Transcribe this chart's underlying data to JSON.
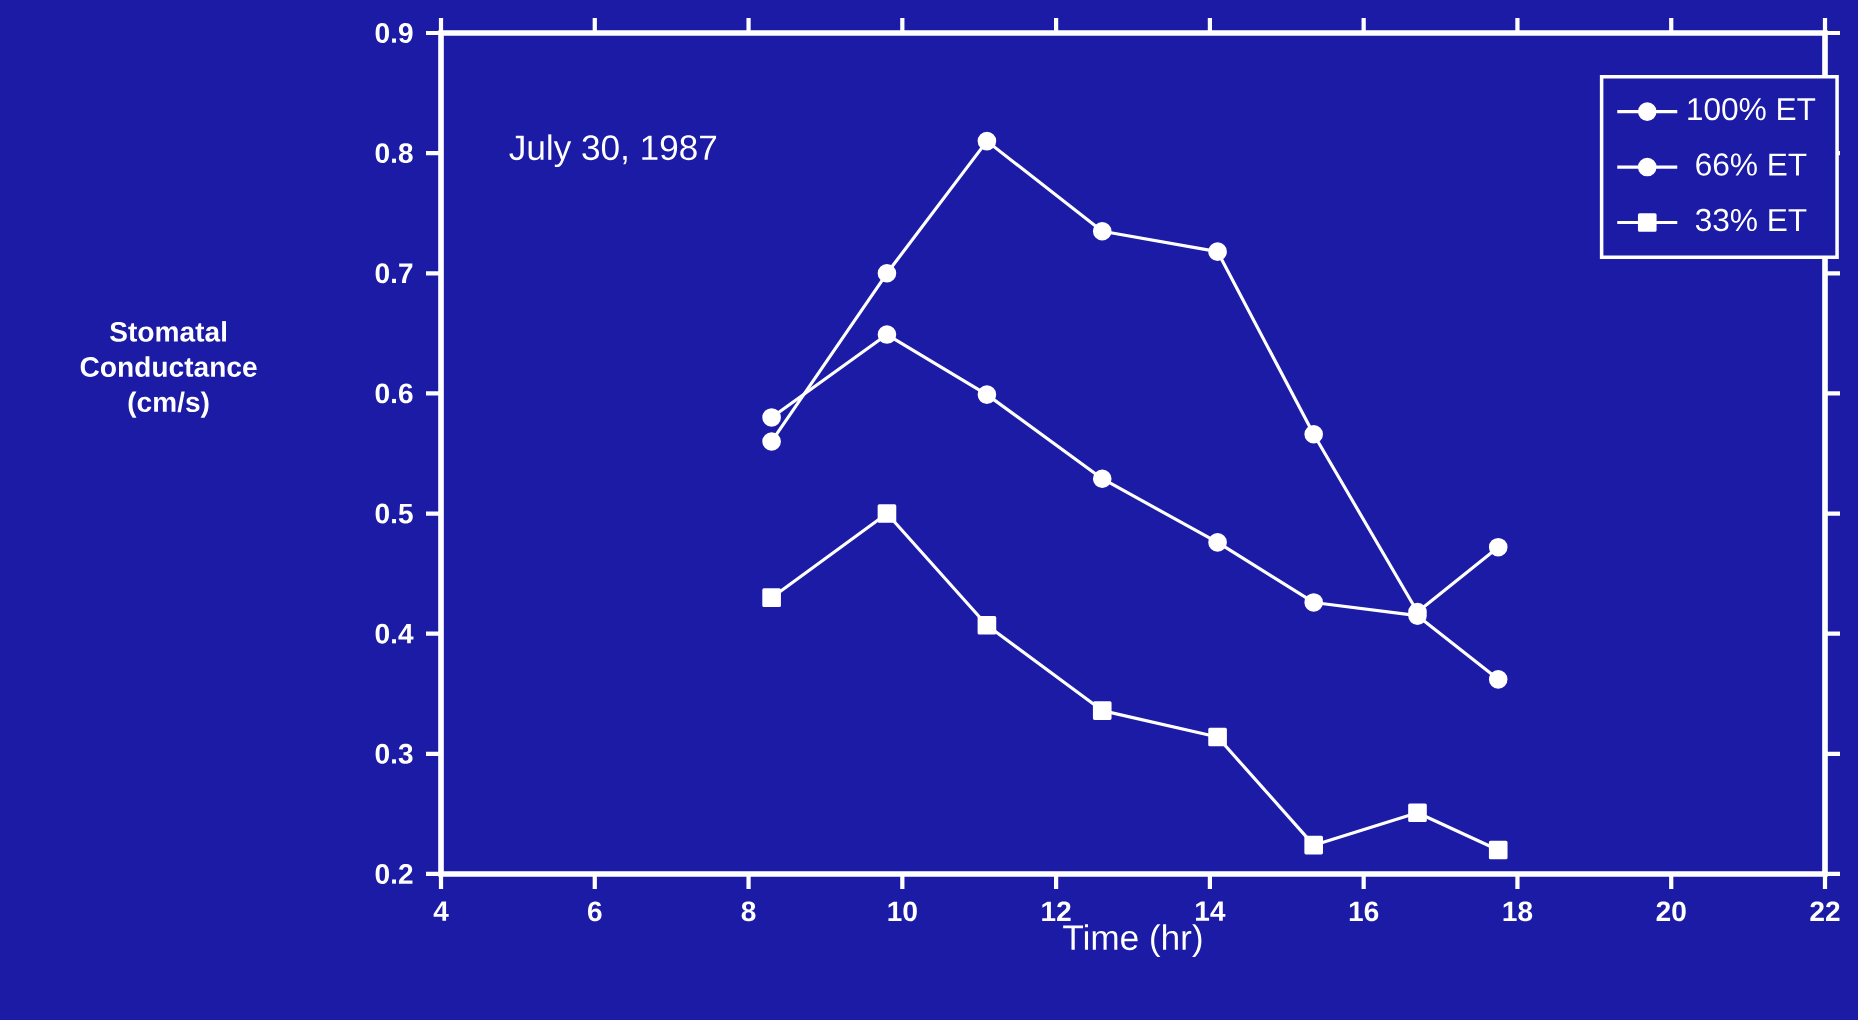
{
  "chart_data": {
    "type": "line",
    "xlabel": "Time (hr)",
    "ylabel": "Stomatal Conductance (cm/s)",
    "annotations": [
      "July 30, 1987"
    ],
    "x": [
      8.3,
      9.8,
      11.1,
      12.6,
      14.1,
      15.35,
      16.7,
      17.75
    ],
    "series": [
      {
        "name": "100% ET",
        "color": "#ffffff",
        "marker": "circle",
        "values": [
          0.56,
          0.7,
          0.81,
          0.735,
          0.718,
          0.566,
          0.418,
          0.472
        ]
      },
      {
        "name": "66% ET",
        "color": "#ffffff",
        "marker": "circle",
        "values": [
          0.58,
          0.649,
          0.599,
          0.529,
          0.476,
          0.426,
          0.415,
          0.362
        ]
      },
      {
        "name": "33% ET",
        "color": "#ffffff",
        "marker": "square",
        "values": [
          0.43,
          0.5,
          0.407,
          0.336,
          0.314,
          0.224,
          0.251,
          0.22
        ]
      }
    ],
    "xlim": [
      4,
      22
    ],
    "xticks": [
      4,
      6,
      8,
      10,
      12,
      14,
      16,
      18,
      20,
      22
    ],
    "ylim": [
      0.2,
      0.9
    ],
    "yticks": [
      0.2,
      0.3,
      0.4,
      0.5,
      0.6,
      0.7,
      0.8,
      0.9
    ],
    "grid": false,
    "legend": "top right",
    "line_style": "solid"
  }
}
